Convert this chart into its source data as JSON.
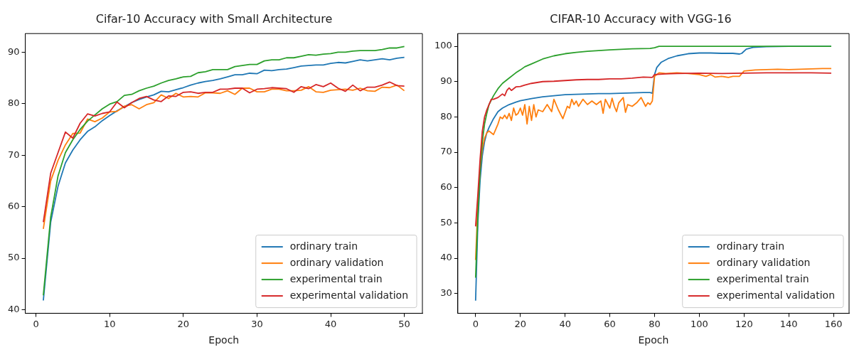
{
  "chart_data": [
    {
      "type": "line",
      "title": "Cifar-10 Accuracy with Small Architecture",
      "xlabel": "Epoch",
      "legend": "bottom right",
      "grid": false,
      "marker": "none",
      "line_style": "solid",
      "x": [
        1,
        2,
        3,
        4,
        5,
        6,
        7,
        8,
        9,
        10,
        11,
        12,
        13,
        14,
        15,
        16,
        17,
        18,
        19,
        20,
        21,
        22,
        23,
        24,
        25,
        26,
        27,
        28,
        29,
        30,
        31,
        32,
        33,
        34,
        35,
        36,
        37,
        38,
        39,
        40,
        41,
        42,
        43,
        44,
        45,
        46,
        47,
        48,
        49,
        50
      ],
      "xlim": [
        -1.45,
        52.45
      ],
      "xticks": [
        0,
        10,
        20,
        30,
        40,
        50
      ],
      "ylim": [
        39.3,
        93.6
      ],
      "yticks": [
        40,
        50,
        60,
        70,
        80,
        90
      ],
      "series": [
        {
          "name": "ordinary train",
          "color": "#1f77b4",
          "values": [
            41.8,
            57,
            64,
            68.5,
            71,
            73,
            74.6,
            75.5,
            76.7,
            77.7,
            78.6,
            79.4,
            80.2,
            80.8,
            81.3,
            81.7,
            82.4,
            82.3,
            82.7,
            83.1,
            83.6,
            84,
            84.3,
            84.5,
            84.8,
            85.2,
            85.6,
            85.6,
            85.9,
            85.8,
            86.5,
            86.4,
            86.6,
            86.7,
            87,
            87.3,
            87.4,
            87.5,
            87.5,
            87.8,
            88,
            87.9,
            88.2,
            88.5,
            88.3,
            88.5,
            88.7,
            88.5,
            88.8,
            89
          ]
        },
        {
          "name": "ordinary validation",
          "color": "#ff7f0e",
          "values": [
            55.7,
            65,
            69,
            72,
            74.2,
            74.3,
            77,
            76.5,
            77.2,
            78.4,
            78.5,
            79.5,
            79.8,
            79,
            79.8,
            80.2,
            81.7,
            81,
            82,
            81.3,
            81.4,
            81.3,
            82.1,
            82.1,
            82,
            82.5,
            81.8,
            83,
            83,
            82.3,
            82.3,
            82.8,
            82.8,
            82.5,
            82.5,
            82.6,
            83.3,
            82.3,
            82.2,
            82.6,
            82.7,
            82.8,
            82.6,
            83,
            82.5,
            82.4,
            83.2,
            83.1,
            83.6,
            82.5
          ]
        },
        {
          "name": "experimental train",
          "color": "#2ca02c",
          "values": [
            42.8,
            58,
            66,
            70.5,
            73,
            75,
            76.6,
            77.8,
            79,
            79.9,
            80.4,
            81.6,
            81.8,
            82.5,
            83,
            83.4,
            84,
            84.5,
            84.8,
            85.2,
            85.3,
            86,
            86.2,
            86.6,
            86.6,
            86.6,
            87.2,
            87.4,
            87.6,
            87.6,
            88.3,
            88.5,
            88.5,
            88.9,
            88.9,
            89.2,
            89.5,
            89.4,
            89.6,
            89.7,
            90,
            90,
            90.2,
            90.3,
            90.3,
            90.3,
            90.5,
            90.8,
            90.8,
            91.1
          ]
        },
        {
          "name": "experimental validation",
          "color": "#d62728",
          "values": [
            57,
            66.5,
            70.5,
            74.5,
            73.3,
            76.2,
            78,
            77.6,
            78.1,
            78.4,
            80.3,
            79.2,
            80.2,
            81,
            81.4,
            80.7,
            80.4,
            81.5,
            81.4,
            82.2,
            82.3,
            82,
            82.2,
            82.2,
            82.8,
            82.8,
            83,
            83,
            82.1,
            82.8,
            82.9,
            83.1,
            83,
            82.9,
            82.2,
            83.3,
            82.9,
            83.7,
            83.3,
            84,
            83,
            82.4,
            83.6,
            82.5,
            83.2,
            83.2,
            83.6,
            84.2,
            83.5,
            83.4
          ]
        }
      ]
    },
    {
      "type": "line",
      "title": "CIFAR-10 Accuracy with VGG-16",
      "xlabel": "Epoch",
      "legend": "bottom right",
      "grid": false,
      "marker": "none",
      "line_style": "solid",
      "xlim": [
        -7.95,
        166.95
      ],
      "xticks": [
        0,
        20,
        40,
        60,
        80,
        100,
        120,
        140,
        160
      ],
      "ylim": [
        24.4,
        103.6
      ],
      "yticks": [
        30,
        40,
        50,
        60,
        70,
        80,
        90,
        100
      ],
      "series": [
        {
          "name": "ordinary train",
          "color": "#1f77b4",
          "x": [
            0,
            1,
            2,
            3,
            4,
            5,
            6,
            8,
            10,
            12,
            15,
            18,
            20,
            25,
            30,
            35,
            40,
            45,
            50,
            55,
            60,
            65,
            70,
            75,
            78,
            79,
            80,
            81,
            83,
            86,
            90,
            95,
            100,
            105,
            110,
            115,
            118,
            119,
            121,
            124,
            130,
            140,
            159
          ],
          "values": [
            28,
            50,
            62,
            69,
            73,
            75.5,
            77,
            79.5,
            81.5,
            82.5,
            83.5,
            84.2,
            84.6,
            85.2,
            85.7,
            86,
            86.3,
            86.4,
            86.5,
            86.6,
            86.6,
            86.7,
            86.8,
            86.9,
            86.9,
            86.7,
            92,
            94,
            95.5,
            96.5,
            97.3,
            97.9,
            98.1,
            98.1,
            98,
            98,
            97.8,
            98,
            99.2,
            99.7,
            99.9,
            100,
            100
          ]
        },
        {
          "name": "ordinary validation",
          "color": "#ff7f0e",
          "x": [
            0,
            1,
            2,
            3,
            4,
            5,
            6,
            7,
            8,
            9,
            10,
            11,
            12,
            13,
            14,
            15,
            16,
            17,
            18,
            19,
            20,
            21,
            22,
            23,
            24,
            25,
            26,
            27,
            28,
            30,
            32,
            34,
            35,
            37,
            39,
            41,
            42,
            43,
            44,
            45,
            46,
            48,
            50,
            52,
            54,
            56,
            57,
            58,
            60,
            61,
            62,
            63,
            64,
            66,
            67,
            68,
            70,
            72,
            74,
            76,
            77,
            78,
            79,
            80,
            82,
            85,
            90,
            95,
            100,
            103,
            105,
            107,
            110,
            113,
            115,
            118,
            119,
            120,
            125,
            130,
            135,
            140,
            145,
            150,
            155,
            159
          ],
          "values": [
            39.5,
            55,
            65,
            71,
            74,
            75.5,
            76,
            75.5,
            75,
            76.5,
            78,
            80,
            79.5,
            80.5,
            79.5,
            81,
            79,
            82.5,
            80.5,
            81,
            82.5,
            80.5,
            83.5,
            78,
            83,
            79,
            83.5,
            80,
            82,
            81.5,
            83.5,
            81.5,
            85,
            82,
            79.5,
            83,
            82.5,
            85,
            83.5,
            84.5,
            83,
            85,
            83.5,
            84.5,
            83.5,
            84.5,
            81,
            85,
            82.5,
            85.3,
            83,
            81.5,
            84,
            85.5,
            81.3,
            83.5,
            83,
            84,
            85.5,
            83,
            84,
            83.5,
            84.5,
            91.5,
            92.5,
            92.3,
            92.5,
            92.3,
            92,
            91.5,
            92,
            91.3,
            91.5,
            91.2,
            91.5,
            91.5,
            92.3,
            93,
            93.3,
            93.4,
            93.5,
            93.4,
            93.5,
            93.6,
            93.7,
            93.7
          ]
        },
        {
          "name": "experimental train",
          "color": "#2ca02c",
          "x": [
            0,
            1,
            2,
            3,
            4,
            5,
            6,
            8,
            10,
            12,
            15,
            18,
            20,
            22,
            25,
            30,
            35,
            40,
            45,
            50,
            60,
            70,
            78,
            80,
            82,
            100,
            159
          ],
          "values": [
            34.5,
            52,
            65,
            73,
            78,
            81,
            83.5,
            86,
            88,
            89.5,
            91,
            92.5,
            93.3,
            94.2,
            95,
            96.4,
            97.3,
            97.9,
            98.3,
            98.6,
            99,
            99.3,
            99.4,
            99.6,
            100,
            100,
            100
          ]
        },
        {
          "name": "experimental validation",
          "color": "#d62728",
          "x": [
            0,
            1,
            2,
            3,
            4,
            5,
            6,
            7,
            8,
            10,
            12,
            13,
            14,
            15,
            16,
            18,
            20,
            22,
            25,
            28,
            30,
            35,
            40,
            45,
            50,
            55,
            60,
            65,
            70,
            75,
            79,
            80,
            85,
            90,
            100,
            110,
            120,
            130,
            140,
            150,
            159
          ],
          "values": [
            49,
            58,
            68,
            76,
            80,
            82,
            83.5,
            85,
            85,
            85.5,
            86.5,
            86,
            87.5,
            88.2,
            87.5,
            88.5,
            88.6,
            89,
            89.5,
            89.8,
            90,
            90.1,
            90.3,
            90.5,
            90.6,
            90.6,
            90.8,
            90.8,
            91,
            91.3,
            91.2,
            92,
            92.2,
            92.3,
            92.4,
            92.3,
            92.4,
            92.5,
            92.5,
            92.5,
            92.4
          ]
        }
      ]
    }
  ]
}
